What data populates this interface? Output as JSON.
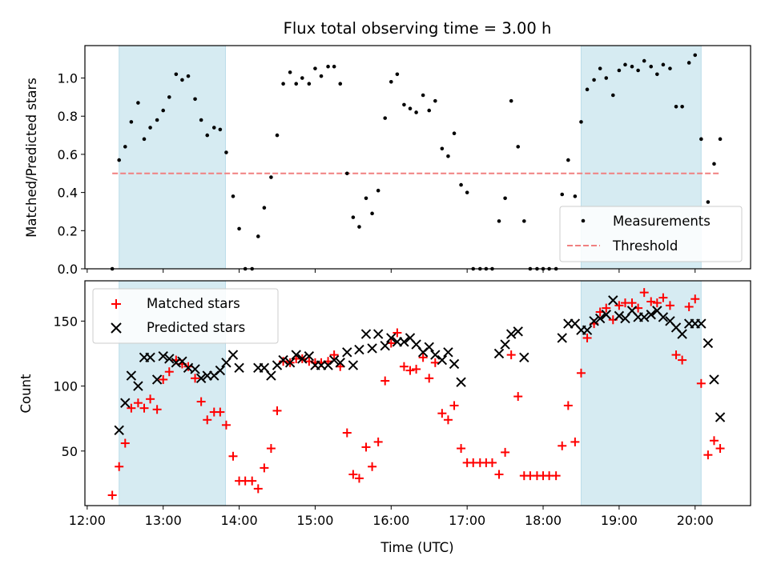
{
  "chart_data": [
    {
      "type": "scatter",
      "title": "Flux total observing time = 3.00 h",
      "ylabel": "Matched/Predicted stars",
      "xlabel": "",
      "xlim_hours": [
        11.97,
        20.73
      ],
      "ylim": [
        0,
        1.17
      ],
      "yticks": [
        "0.0",
        "0.2",
        "0.4",
        "0.6",
        "0.8",
        "1.0"
      ],
      "shaded_intervals_hours": [
        [
          12.42,
          13.82
        ],
        [
          18.5,
          20.08
        ]
      ],
      "threshold": {
        "name": "Threshold",
        "value": 0.5,
        "x_range_hours": [
          12.33,
          20.33
        ],
        "color": "#f08080"
      },
      "legend": {
        "placement": "lower right",
        "entries": [
          "Measurements",
          "Threshold"
        ]
      },
      "series": [
        {
          "name": "Measurements",
          "marker": "dot",
          "color": "#000000",
          "x_hours": [
            12.33,
            12.42,
            12.5,
            12.58,
            12.67,
            12.75,
            12.83,
            12.92,
            13.0,
            13.08,
            13.17,
            13.25,
            13.33,
            13.42,
            13.5,
            13.58,
            13.67,
            13.75,
            13.83,
            13.92,
            14.0,
            14.08,
            14.17,
            14.25,
            14.33,
            14.42,
            14.5,
            14.58,
            14.67,
            14.75,
            14.83,
            14.92,
            15.0,
            15.08,
            15.17,
            15.25,
            15.33,
            15.42,
            15.5,
            15.58,
            15.67,
            15.75,
            15.83,
            15.92,
            16.0,
            16.08,
            16.17,
            16.25,
            16.33,
            16.42,
            16.5,
            16.58,
            16.67,
            16.75,
            16.83,
            16.92,
            17.0,
            17.08,
            17.17,
            17.25,
            17.33,
            17.42,
            17.5,
            17.58,
            17.67,
            17.75,
            17.83,
            17.92,
            18.0,
            18.08,
            18.17,
            18.25,
            18.33,
            18.42,
            18.5,
            18.58,
            18.67,
            18.75,
            18.83,
            18.92,
            19.0,
            19.08,
            19.17,
            19.25,
            19.33,
            19.42,
            19.5,
            19.58,
            19.67,
            19.75,
            19.83,
            19.92,
            20.0,
            20.08,
            20.17,
            20.25,
            20.33
          ],
          "y": [
            0.0,
            0.57,
            0.64,
            0.77,
            0.87,
            0.68,
            0.74,
            0.78,
            0.83,
            0.9,
            1.02,
            0.99,
            1.01,
            0.89,
            0.78,
            0.7,
            0.74,
            0.73,
            0.61,
            0.38,
            0.21,
            0.0,
            0.0,
            0.17,
            0.32,
            0.48,
            0.7,
            0.97,
            1.03,
            0.97,
            1.0,
            0.97,
            1.05,
            1.01,
            1.06,
            1.06,
            0.97,
            0.5,
            0.27,
            0.22,
            0.37,
            0.29,
            0.41,
            0.79,
            0.98,
            1.02,
            0.86,
            0.84,
            0.82,
            0.91,
            0.83,
            0.88,
            0.63,
            0.59,
            0.71,
            0.44,
            0.4,
            0.0,
            0.0,
            0.0,
            0.0,
            0.25,
            0.37,
            0.88,
            0.64,
            0.25,
            0.0,
            0.0,
            0.0,
            0.0,
            0.0,
            0.39,
            0.57,
            0.38,
            0.77,
            0.94,
            0.99,
            1.05,
            1.0,
            0.91,
            1.04,
            1.07,
            1.06,
            1.04,
            1.09,
            1.06,
            1.02,
            1.07,
            1.05,
            0.85,
            0.85,
            1.08,
            1.12,
            0.68,
            0.35,
            0.55,
            0.68
          ]
        }
      ]
    },
    {
      "type": "scatter",
      "title": "",
      "ylabel": "Count",
      "xlabel": "Time (UTC)",
      "xlim_hours": [
        11.97,
        20.73
      ],
      "ylim": [
        8,
        181
      ],
      "yticks": [
        "50",
        "100",
        "150"
      ],
      "xticks": [
        "12:00",
        "13:00",
        "14:00",
        "15:00",
        "16:00",
        "17:00",
        "18:00",
        "19:00",
        "20:00"
      ],
      "shaded_intervals_hours": [
        [
          12.42,
          13.82
        ],
        [
          18.5,
          20.08
        ]
      ],
      "legend": {
        "placement": "upper left",
        "entries": [
          "Matched stars",
          "Predicted stars"
        ]
      },
      "series": [
        {
          "name": "Matched stars",
          "marker": "plus",
          "color": "#ff0000",
          "x_hours": [
            12.33,
            12.42,
            12.5,
            12.58,
            12.67,
            12.75,
            12.83,
            12.92,
            13.0,
            13.08,
            13.17,
            13.25,
            13.33,
            13.42,
            13.5,
            13.58,
            13.67,
            13.75,
            13.83,
            13.92,
            14.0,
            14.08,
            14.17,
            14.25,
            14.33,
            14.42,
            14.5,
            14.58,
            14.67,
            14.75,
            14.83,
            14.92,
            15.0,
            15.08,
            15.17,
            15.25,
            15.33,
            15.42,
            15.5,
            15.58,
            15.67,
            15.75,
            15.83,
            15.92,
            16.0,
            16.08,
            16.17,
            16.25,
            16.33,
            16.42,
            16.5,
            16.58,
            16.67,
            16.75,
            16.83,
            16.92,
            17.0,
            17.08,
            17.17,
            17.25,
            17.33,
            17.42,
            17.5,
            17.58,
            17.67,
            17.75,
            17.83,
            17.92,
            18.0,
            18.08,
            18.17,
            18.25,
            18.33,
            18.42,
            18.5,
            18.58,
            18.67,
            18.75,
            18.83,
            18.92,
            19.0,
            19.08,
            19.17,
            19.25,
            19.33,
            19.42,
            19.5,
            19.58,
            19.67,
            19.75,
            19.83,
            19.92,
            20.0,
            20.08,
            20.17,
            20.25,
            20.33
          ],
          "y": [
            16,
            38,
            56,
            83,
            87,
            83,
            90,
            82,
            105,
            111,
            120,
            117,
            115,
            106,
            88,
            74,
            80,
            80,
            70,
            46,
            27,
            27,
            27,
            21,
            37,
            52,
            81,
            119,
            118,
            121,
            121,
            119,
            118,
            118,
            119,
            124,
            115,
            64,
            32,
            29,
            53,
            38,
            57,
            104,
            133,
            141,
            115,
            112,
            113,
            122,
            106,
            118,
            79,
            74,
            85,
            52,
            41,
            41,
            41,
            41,
            41,
            32,
            49,
            124,
            92,
            31,
            31,
            31,
            31,
            31,
            31,
            54,
            85,
            57,
            110,
            137,
            148,
            157,
            160,
            151,
            162,
            164,
            164,
            160,
            172,
            165,
            164,
            168,
            162,
            124,
            120,
            161,
            167,
            102,
            47,
            58,
            52
          ]
        },
        {
          "name": "Predicted stars",
          "marker": "x",
          "color": "#000000",
          "x_hours": [
            12.42,
            12.5,
            12.58,
            12.67,
            12.75,
            12.83,
            12.92,
            13.0,
            13.08,
            13.17,
            13.25,
            13.33,
            13.42,
            13.5,
            13.58,
            13.67,
            13.75,
            13.83,
            13.92,
            14.0,
            14.25,
            14.33,
            14.42,
            14.5,
            14.58,
            14.67,
            14.75,
            14.83,
            14.92,
            15.0,
            15.08,
            15.17,
            15.25,
            15.33,
            15.42,
            15.5,
            15.58,
            15.67,
            15.75,
            15.83,
            15.92,
            16.0,
            16.08,
            16.17,
            16.25,
            16.33,
            16.42,
            16.5,
            16.58,
            16.67,
            16.75,
            16.83,
            16.92,
            17.42,
            17.5,
            17.58,
            17.67,
            17.75,
            18.25,
            18.33,
            18.42,
            18.5,
            18.58,
            18.67,
            18.75,
            18.83,
            18.92,
            19.0,
            19.08,
            19.17,
            19.25,
            19.33,
            19.42,
            19.5,
            19.58,
            19.67,
            19.75,
            19.83,
            19.92,
            20.0,
            20.08,
            20.17,
            20.25,
            20.33
          ],
          "y": [
            66,
            87,
            108,
            100,
            122,
            122,
            105,
            123,
            121,
            118,
            119,
            114,
            113,
            106,
            108,
            108,
            112,
            118,
            124,
            114,
            114,
            114,
            108,
            116,
            120,
            118,
            124,
            121,
            123,
            116,
            116,
            116,
            120,
            118,
            126,
            116,
            128,
            140,
            129,
            140,
            131,
            137,
            134,
            134,
            137,
            132,
            126,
            130,
            124,
            120,
            126,
            117,
            103,
            125,
            132,
            140,
            142,
            122,
            137,
            148,
            148,
            143,
            143,
            150,
            152,
            155,
            166,
            154,
            152,
            158,
            153,
            153,
            155,
            158,
            153,
            150,
            145,
            140,
            148,
            148,
            148,
            133,
            105,
            76
          ]
        }
      ]
    }
  ]
}
